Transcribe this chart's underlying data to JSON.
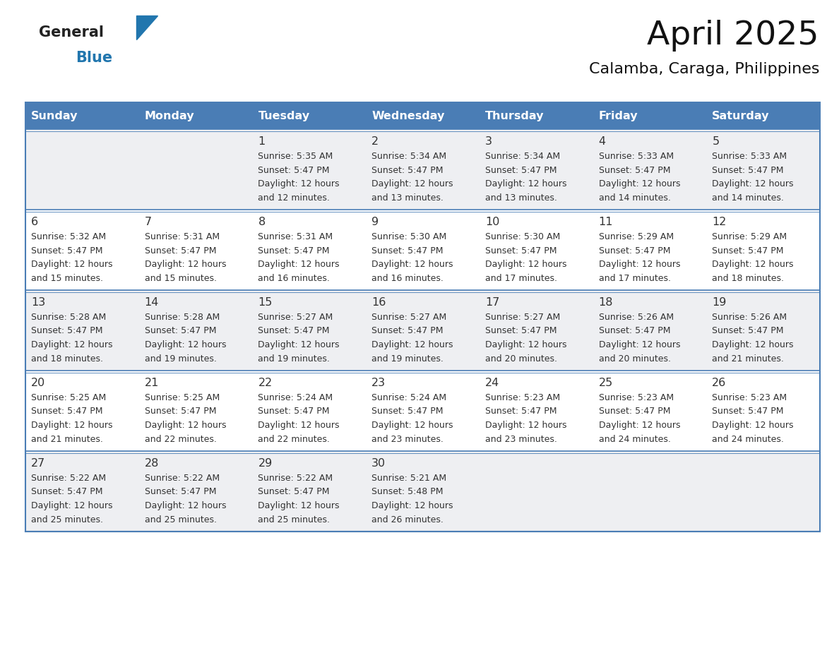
{
  "title": "April 2025",
  "subtitle": "Calamba, Caraga, Philippines",
  "header_bg": "#4a7db5",
  "header_text_color": "#FFFFFF",
  "weekdays": [
    "Sunday",
    "Monday",
    "Tuesday",
    "Wednesday",
    "Thursday",
    "Friday",
    "Saturday"
  ],
  "row_bg_odd": "#eeeff2",
  "row_bg_even": "#FFFFFF",
  "border_color": "#4a7db5",
  "text_color": "#333333",
  "days": [
    {
      "day": null,
      "sunrise": null,
      "sunset": null,
      "daylight": null
    },
    {
      "day": null,
      "sunrise": null,
      "sunset": null,
      "daylight": null
    },
    {
      "day": 1,
      "sunrise": "5:35 AM",
      "sunset": "5:47 PM",
      "daylight": "12 hours and 12 minutes."
    },
    {
      "day": 2,
      "sunrise": "5:34 AM",
      "sunset": "5:47 PM",
      "daylight": "12 hours and 13 minutes."
    },
    {
      "day": 3,
      "sunrise": "5:34 AM",
      "sunset": "5:47 PM",
      "daylight": "12 hours and 13 minutes."
    },
    {
      "day": 4,
      "sunrise": "5:33 AM",
      "sunset": "5:47 PM",
      "daylight": "12 hours and 14 minutes."
    },
    {
      "day": 5,
      "sunrise": "5:33 AM",
      "sunset": "5:47 PM",
      "daylight": "12 hours and 14 minutes."
    },
    {
      "day": 6,
      "sunrise": "5:32 AM",
      "sunset": "5:47 PM",
      "daylight": "12 hours and 15 minutes."
    },
    {
      "day": 7,
      "sunrise": "5:31 AM",
      "sunset": "5:47 PM",
      "daylight": "12 hours and 15 minutes."
    },
    {
      "day": 8,
      "sunrise": "5:31 AM",
      "sunset": "5:47 PM",
      "daylight": "12 hours and 16 minutes."
    },
    {
      "day": 9,
      "sunrise": "5:30 AM",
      "sunset": "5:47 PM",
      "daylight": "12 hours and 16 minutes."
    },
    {
      "day": 10,
      "sunrise": "5:30 AM",
      "sunset": "5:47 PM",
      "daylight": "12 hours and 17 minutes."
    },
    {
      "day": 11,
      "sunrise": "5:29 AM",
      "sunset": "5:47 PM",
      "daylight": "12 hours and 17 minutes."
    },
    {
      "day": 12,
      "sunrise": "5:29 AM",
      "sunset": "5:47 PM",
      "daylight": "12 hours and 18 minutes."
    },
    {
      "day": 13,
      "sunrise": "5:28 AM",
      "sunset": "5:47 PM",
      "daylight": "12 hours and 18 minutes."
    },
    {
      "day": 14,
      "sunrise": "5:28 AM",
      "sunset": "5:47 PM",
      "daylight": "12 hours and 19 minutes."
    },
    {
      "day": 15,
      "sunrise": "5:27 AM",
      "sunset": "5:47 PM",
      "daylight": "12 hours and 19 minutes."
    },
    {
      "day": 16,
      "sunrise": "5:27 AM",
      "sunset": "5:47 PM",
      "daylight": "12 hours and 19 minutes."
    },
    {
      "day": 17,
      "sunrise": "5:27 AM",
      "sunset": "5:47 PM",
      "daylight": "12 hours and 20 minutes."
    },
    {
      "day": 18,
      "sunrise": "5:26 AM",
      "sunset": "5:47 PM",
      "daylight": "12 hours and 20 minutes."
    },
    {
      "day": 19,
      "sunrise": "5:26 AM",
      "sunset": "5:47 PM",
      "daylight": "12 hours and 21 minutes."
    },
    {
      "day": 20,
      "sunrise": "5:25 AM",
      "sunset": "5:47 PM",
      "daylight": "12 hours and 21 minutes."
    },
    {
      "day": 21,
      "sunrise": "5:25 AM",
      "sunset": "5:47 PM",
      "daylight": "12 hours and 22 minutes."
    },
    {
      "day": 22,
      "sunrise": "5:24 AM",
      "sunset": "5:47 PM",
      "daylight": "12 hours and 22 minutes."
    },
    {
      "day": 23,
      "sunrise": "5:24 AM",
      "sunset": "5:47 PM",
      "daylight": "12 hours and 23 minutes."
    },
    {
      "day": 24,
      "sunrise": "5:23 AM",
      "sunset": "5:47 PM",
      "daylight": "12 hours and 23 minutes."
    },
    {
      "day": 25,
      "sunrise": "5:23 AM",
      "sunset": "5:47 PM",
      "daylight": "12 hours and 24 minutes."
    },
    {
      "day": 26,
      "sunrise": "5:23 AM",
      "sunset": "5:47 PM",
      "daylight": "12 hours and 24 minutes."
    },
    {
      "day": 27,
      "sunrise": "5:22 AM",
      "sunset": "5:47 PM",
      "daylight": "12 hours and 25 minutes."
    },
    {
      "day": 28,
      "sunrise": "5:22 AM",
      "sunset": "5:47 PM",
      "daylight": "12 hours and 25 minutes."
    },
    {
      "day": 29,
      "sunrise": "5:22 AM",
      "sunset": "5:47 PM",
      "daylight": "12 hours and 25 minutes."
    },
    {
      "day": 30,
      "sunrise": "5:21 AM",
      "sunset": "5:48 PM",
      "daylight": "12 hours and 26 minutes."
    },
    {
      "day": null,
      "sunrise": null,
      "sunset": null,
      "daylight": null
    },
    {
      "day": null,
      "sunrise": null,
      "sunset": null,
      "daylight": null
    },
    {
      "day": null,
      "sunrise": null,
      "sunset": null,
      "daylight": null
    }
  ],
  "logo_general_color": "#222222",
  "logo_blue_color": "#2176AE",
  "logo_triangle_color": "#2176AE"
}
